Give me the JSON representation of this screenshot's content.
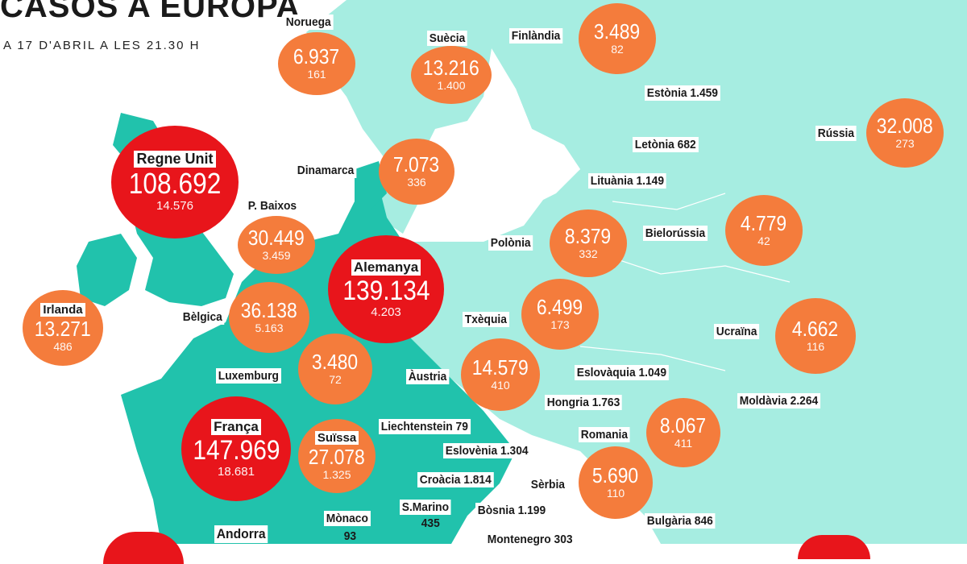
{
  "title": "CASOS A EUROPA",
  "subtitle": "A 17 D'ABRIL A LES 21.30 H",
  "colors": {
    "sea": "#ffffff",
    "land": "#a6ede1",
    "land_dark": "#21c2ac",
    "orange": "#f47c3c",
    "red": "#e8151b"
  },
  "countries": [
    {
      "id": "noruega",
      "name": "Noruega",
      "cases": "6.937",
      "deaths": "161"
    },
    {
      "id": "suecia",
      "name": "Suècia",
      "cases": "13.216",
      "deaths": "1.400"
    },
    {
      "id": "finlandia",
      "name": "Finlàndia",
      "cases": "3.489",
      "deaths": "82"
    },
    {
      "id": "regne-unit",
      "name": "Regne Unit",
      "cases": "108.692",
      "deaths": "14.576"
    },
    {
      "id": "dinamarca",
      "name": "Dinamarca",
      "cases": "7.073",
      "deaths": "336"
    },
    {
      "id": "russia",
      "name": "Rússia",
      "cases": "32.008",
      "deaths": "273"
    },
    {
      "id": "p-baixos",
      "name": "P. Baixos",
      "cases": "30.449",
      "deaths": "3.459"
    },
    {
      "id": "alemanya",
      "name": "Alemanya",
      "cases": "139.134",
      "deaths": "4.203"
    },
    {
      "id": "polonia",
      "name": "Polònia",
      "cases": "8.379",
      "deaths": "332"
    },
    {
      "id": "bielorussia",
      "name": "Bielorússia",
      "cases": "4.779",
      "deaths": "42"
    },
    {
      "id": "irlanda",
      "name": "Irlanda",
      "cases": "13.271",
      "deaths": "486"
    },
    {
      "id": "belgica",
      "name": "Bèlgica",
      "cases": "36.138",
      "deaths": "5.163"
    },
    {
      "id": "txequia",
      "name": "Txèquia",
      "cases": "6.499",
      "deaths": "173"
    },
    {
      "id": "ucraina",
      "name": "Ucraïna",
      "cases": "4.662",
      "deaths": "116"
    },
    {
      "id": "luxemburg",
      "name": "Luxemburg",
      "cases": "3.480",
      "deaths": "72"
    },
    {
      "id": "austria",
      "name": "Àustria",
      "cases": "14.579",
      "deaths": "410"
    },
    {
      "id": "franca",
      "name": "França",
      "cases": "147.969",
      "deaths": "18.681"
    },
    {
      "id": "suissa",
      "name": "Suïssa",
      "cases": "27.078",
      "deaths": "1.325"
    },
    {
      "id": "romania",
      "name": "Romania",
      "cases": "8.067",
      "deaths": "411"
    },
    {
      "id": "serbia",
      "name": "Sèrbia",
      "cases": "5.690",
      "deaths": "110"
    }
  ],
  "small_labels": [
    {
      "id": "estonia",
      "text": "Estònia 1.459"
    },
    {
      "id": "letonia",
      "text": "Letònia 682"
    },
    {
      "id": "lituania",
      "text": "Lituània 1.149"
    },
    {
      "id": "eslovaquia",
      "text": "Eslovàquia 1.049"
    },
    {
      "id": "hongria",
      "text": "Hongria 1.763"
    },
    {
      "id": "moldavia",
      "text": "Moldàvia 2.264"
    },
    {
      "id": "liechtenstein",
      "text": "Liechtenstein 79"
    },
    {
      "id": "eslovenia",
      "text": "Eslovènia 1.304"
    },
    {
      "id": "croacia",
      "text": "Croàcia 1.814"
    },
    {
      "id": "bosnia",
      "text": "Bòsnia 1.199"
    },
    {
      "id": "bulgaria",
      "text": "Bulgària 846"
    },
    {
      "id": "montenegro",
      "text": "Montenegro 303"
    },
    {
      "id": "monaco",
      "text": "Mònaco"
    },
    {
      "id": "monaco-val",
      "text": "93"
    },
    {
      "id": "smarino",
      "text": "S.Marino"
    },
    {
      "id": "smarino-val",
      "text": "435"
    },
    {
      "id": "andorra",
      "text": "Andorra"
    }
  ]
}
